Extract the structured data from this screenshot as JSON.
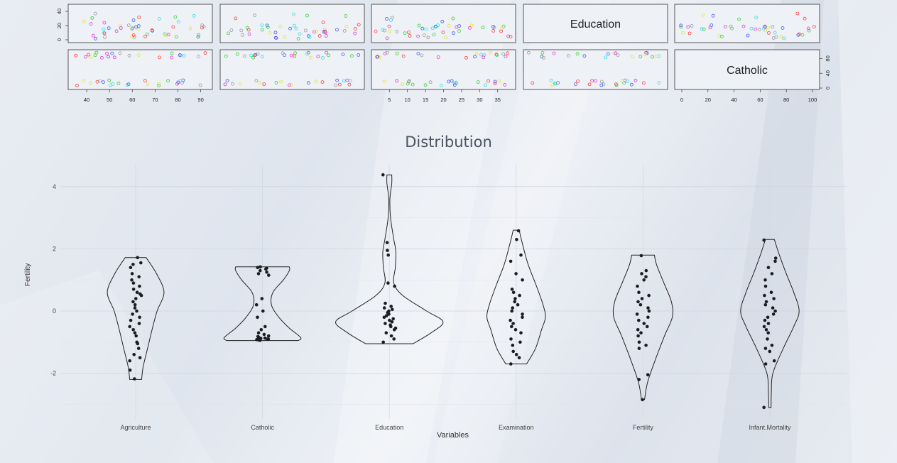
{
  "chart_data": [
    {
      "type": "scatter-matrix",
      "variables": [
        "Education",
        "Catholic"
      ],
      "diagonal_labels": [
        "Education",
        "Catholic"
      ],
      "x_ticks": {
        "col1": [
          40,
          50,
          60,
          70,
          80,
          90
        ],
        "col3": [
          5,
          10,
          15,
          20,
          25,
          30,
          35
        ],
        "col5": [
          0,
          20,
          40,
          60,
          80,
          100
        ]
      },
      "y_ticks": {
        "row1_left": [
          0,
          20,
          40
        ],
        "row2_right": [
          0,
          40,
          80
        ]
      }
    },
    {
      "type": "violin",
      "title": "Distribution",
      "xlabel": "Variables",
      "ylabel": "Fertility",
      "categories": [
        "Agriculture",
        "Catholic",
        "Education",
        "Examination",
        "Fertility",
        "Infant.Mortality"
      ],
      "yticks": [
        -2,
        0,
        2,
        4
      ],
      "ylim": [
        -3.1,
        4.4
      ],
      "series": [
        {
          "name": "Agriculture",
          "min": -2.2,
          "max": 1.72,
          "points": [
            1.72,
            1.55,
            1.5,
            1.4,
            1.2,
            1.1,
            1.0,
            0.9,
            0.8,
            0.7,
            0.6,
            0.55,
            0.5,
            0.4,
            0.3,
            0.2,
            0.1,
            0.0,
            -0.1,
            -0.2,
            -0.3,
            -0.4,
            -0.5,
            -0.6,
            -0.7,
            -0.8,
            -1.0,
            -1.05,
            -1.2,
            -1.4,
            -1.5,
            -1.6,
            -1.9,
            -2.18
          ]
        },
        {
          "name": "Catholic",
          "min": -0.95,
          "max": 1.42,
          "points": [
            1.42,
            1.4,
            1.38,
            1.35,
            1.3,
            1.25,
            1.2,
            1.15,
            0.4,
            0.2,
            0.0,
            -0.2,
            -0.5,
            -0.6,
            -0.7,
            -0.75,
            -0.8,
            -0.82,
            -0.85,
            -0.87,
            -0.88,
            -0.9,
            -0.9,
            -0.91,
            -0.92,
            -0.93,
            -0.94
          ]
        },
        {
          "name": "Education",
          "min": -1.05,
          "max": 4.38,
          "points": [
            4.38,
            2.2,
            1.95,
            1.8,
            0.9,
            0.8,
            0.25,
            0.15,
            0.1,
            0.05,
            0.0,
            -0.05,
            -0.1,
            -0.15,
            -0.2,
            -0.25,
            -0.3,
            -0.35,
            -0.4,
            -0.45,
            -0.5,
            -0.55,
            -0.6,
            -0.7,
            -0.8,
            -0.9,
            -1.0
          ]
        },
        {
          "name": "Examination",
          "min": -1.7,
          "max": 2.6,
          "points": [
            2.58,
            2.3,
            1.8,
            1.6,
            1.2,
            1.0,
            0.7,
            0.6,
            0.5,
            0.4,
            0.3,
            0.2,
            0.1,
            0.0,
            -0.1,
            -0.2,
            -0.3,
            -0.4,
            -0.5,
            -0.6,
            -0.7,
            -0.9,
            -1.0,
            -1.1,
            -1.3,
            -1.4,
            -1.5,
            -1.7
          ]
        },
        {
          "name": "Fertility",
          "min": -2.85,
          "max": 1.8,
          "points": [
            1.78,
            1.3,
            1.2,
            1.1,
            1.0,
            0.8,
            0.6,
            0.5,
            0.4,
            0.3,
            0.2,
            0.1,
            0.0,
            -0.1,
            -0.2,
            -0.3,
            -0.4,
            -0.5,
            -0.6,
            -0.7,
            -0.8,
            -1.0,
            -1.1,
            -1.2,
            -2.05,
            -2.2,
            -2.85
          ]
        },
        {
          "name": "Infant.Mortality",
          "min": -3.1,
          "max": 2.3,
          "points": [
            2.28,
            1.7,
            1.6,
            1.4,
            1.2,
            1.0,
            0.8,
            0.6,
            0.5,
            0.4,
            0.3,
            0.2,
            0.1,
            0.0,
            -0.1,
            -0.2,
            -0.3,
            -0.4,
            -0.5,
            -0.6,
            -0.7,
            -0.9,
            -1.1,
            -1.2,
            -1.3,
            -1.6,
            -1.7,
            -3.1
          ]
        }
      ]
    }
  ]
}
